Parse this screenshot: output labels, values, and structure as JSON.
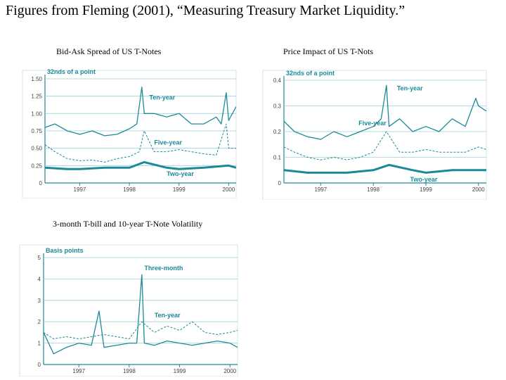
{
  "page_title": "Figures from Fleming (2001), “Measuring Treasury Market Liquidity.”",
  "chart_data": [
    {
      "type": "line",
      "caption": "Bid-Ask Spread of US T-Notes",
      "ylabel": "32nds of a point",
      "ylim": [
        0,
        1.5
      ],
      "yticks": [
        "0",
        "0.25",
        "0.50",
        "0.75",
        "1.00",
        "1.25",
        "1.50"
      ],
      "ytick_values": [
        0,
        0.25,
        0.5,
        0.75,
        1.0,
        1.25,
        1.5
      ],
      "xlim": [
        1996.3,
        2000.15
      ],
      "xticks": [
        "1997",
        "1998",
        "1999",
        "2000"
      ],
      "xtick_values": [
        1997,
        1998,
        1999,
        2000
      ],
      "grid": true,
      "series": [
        {
          "name": "Ten-year",
          "style": "solid",
          "x": [
            1996.3,
            1996.5,
            1996.75,
            1997,
            1997.25,
            1997.5,
            1997.75,
            1998,
            1998.15,
            1998.25,
            1998.3,
            1998.5,
            1998.75,
            1999,
            1999.25,
            1999.5,
            1999.75,
            1999.85,
            1999.95,
            2000,
            2000.15
          ],
          "values": [
            0.8,
            0.85,
            0.75,
            0.7,
            0.75,
            0.68,
            0.7,
            0.78,
            0.85,
            1.38,
            1.0,
            1.0,
            0.95,
            1.0,
            0.85,
            0.85,
            0.95,
            0.85,
            1.3,
            0.9,
            1.1
          ]
        },
        {
          "name": "Five-year",
          "style": "dashed",
          "x": [
            1996.3,
            1996.5,
            1996.75,
            1997,
            1997.25,
            1997.5,
            1997.75,
            1998,
            1998.2,
            1998.3,
            1998.5,
            1998.75,
            1999,
            1999.25,
            1999.5,
            1999.75,
            1999.95,
            2000,
            2000.15
          ],
          "values": [
            0.55,
            0.45,
            0.35,
            0.32,
            0.33,
            0.3,
            0.35,
            0.38,
            0.45,
            0.75,
            0.45,
            0.45,
            0.48,
            0.45,
            0.42,
            0.4,
            0.85,
            0.5,
            0.5
          ]
        },
        {
          "name": "Two-year",
          "style": "thick",
          "x": [
            1996.3,
            1996.75,
            1997,
            1997.5,
            1998,
            1998.3,
            1998.75,
            1999,
            1999.5,
            2000,
            2000.15
          ],
          "values": [
            0.22,
            0.2,
            0.2,
            0.22,
            0.22,
            0.3,
            0.22,
            0.2,
            0.22,
            0.25,
            0.22
          ]
        }
      ],
      "annotations": [
        {
          "text": "Ten-year",
          "x": 1998.4,
          "y": 1.2
        },
        {
          "text": "Five-year",
          "x": 1998.5,
          "y": 0.55
        },
        {
          "text": "Two-year",
          "x": 1998.75,
          "y": 0.1
        }
      ]
    },
    {
      "type": "line",
      "caption": "Price Impact of US T-Nots",
      "ylabel": "32nds of a point",
      "ylim": [
        0,
        0.4
      ],
      "yticks": [
        "0",
        "0.1",
        "0.2",
        "0.3",
        "0.4"
      ],
      "ytick_values": [
        0,
        0.1,
        0.2,
        0.3,
        0.4
      ],
      "xlim": [
        1996.3,
        2000.15
      ],
      "xticks": [
        "1997",
        "1998",
        "1999",
        "2000"
      ],
      "xtick_values": [
        1997,
        1998,
        1999,
        2000
      ],
      "grid": true,
      "series": [
        {
          "name": "Ten-year",
          "style": "solid",
          "x": [
            1996.3,
            1996.5,
            1996.75,
            1997,
            1997.25,
            1997.5,
            1997.75,
            1998,
            1998.15,
            1998.25,
            1998.3,
            1998.5,
            1998.75,
            1999,
            1999.25,
            1999.5,
            1999.75,
            1999.95,
            2000,
            2000.15
          ],
          "values": [
            0.24,
            0.2,
            0.18,
            0.17,
            0.2,
            0.18,
            0.2,
            0.22,
            0.25,
            0.38,
            0.22,
            0.25,
            0.2,
            0.22,
            0.2,
            0.25,
            0.22,
            0.33,
            0.3,
            0.28
          ]
        },
        {
          "name": "Five-year",
          "style": "dashed",
          "x": [
            1996.3,
            1996.5,
            1996.75,
            1997,
            1997.25,
            1997.5,
            1997.75,
            1998,
            1998.25,
            1998.5,
            1998.75,
            1999,
            1999.25,
            1999.5,
            1999.75,
            2000,
            2000.15
          ],
          "values": [
            0.14,
            0.12,
            0.1,
            0.09,
            0.1,
            0.09,
            0.1,
            0.12,
            0.2,
            0.12,
            0.12,
            0.13,
            0.12,
            0.12,
            0.12,
            0.14,
            0.13
          ]
        },
        {
          "name": "Two-year",
          "style": "thick",
          "x": [
            1996.3,
            1996.75,
            1997,
            1997.5,
            1998,
            1998.3,
            1998.75,
            1999,
            1999.5,
            2000,
            2000.15
          ],
          "values": [
            0.05,
            0.04,
            0.04,
            0.04,
            0.05,
            0.07,
            0.05,
            0.04,
            0.05,
            0.05,
            0.05
          ]
        }
      ],
      "annotations": [
        {
          "text": "Ten-year",
          "x": 1998.45,
          "y": 0.36
        },
        {
          "text": "Five-year",
          "x": 1997.72,
          "y": 0.225
        },
        {
          "text": "Two-year",
          "x": 1998.7,
          "y": 0.005
        }
      ]
    },
    {
      "type": "line",
      "caption": "3-month T-bill and 10-year T-Note Volatility",
      "ylabel": "Basis points",
      "ylim": [
        0,
        5
      ],
      "yticks": [
        "0",
        "1",
        "2",
        "3",
        "4",
        "5"
      ],
      "ytick_values": [
        0,
        1,
        2,
        3,
        4,
        5
      ],
      "xlim": [
        1996.3,
        2000.15
      ],
      "xticks": [
        "1997",
        "1998",
        "1999",
        "2000"
      ],
      "xtick_values": [
        1997,
        1998,
        1999,
        2000
      ],
      "grid": true,
      "series": [
        {
          "name": "Three-month",
          "style": "solid",
          "x": [
            1996.3,
            1996.5,
            1996.75,
            1997,
            1997.25,
            1997.4,
            1997.5,
            1997.75,
            1998,
            1998.15,
            1998.25,
            1998.3,
            1998.5,
            1998.75,
            1999,
            1999.25,
            1999.5,
            1999.75,
            2000,
            2000.15
          ],
          "values": [
            1.5,
            0.5,
            0.8,
            1.0,
            0.9,
            2.5,
            0.8,
            0.9,
            1.0,
            1.0,
            4.2,
            1.0,
            0.9,
            1.1,
            1.0,
            0.9,
            1.0,
            1.1,
            1.0,
            0.8
          ]
        },
        {
          "name": "Ten-year",
          "style": "dashed",
          "x": [
            1996.3,
            1996.5,
            1996.75,
            1997,
            1997.25,
            1997.5,
            1997.75,
            1998,
            1998.25,
            1998.5,
            1998.75,
            1999,
            1999.25,
            1999.5,
            1999.75,
            2000,
            2000.15
          ],
          "values": [
            1.5,
            1.2,
            1.3,
            1.2,
            1.3,
            1.4,
            1.3,
            1.2,
            2.0,
            1.5,
            1.8,
            1.6,
            2.0,
            1.5,
            1.4,
            1.5,
            1.6
          ]
        }
      ],
      "annotations": [
        {
          "text": "Three-month",
          "x": 1998.3,
          "y": 4.4
        },
        {
          "text": "Ten-year",
          "x": 1998.5,
          "y": 2.2
        }
      ]
    }
  ]
}
